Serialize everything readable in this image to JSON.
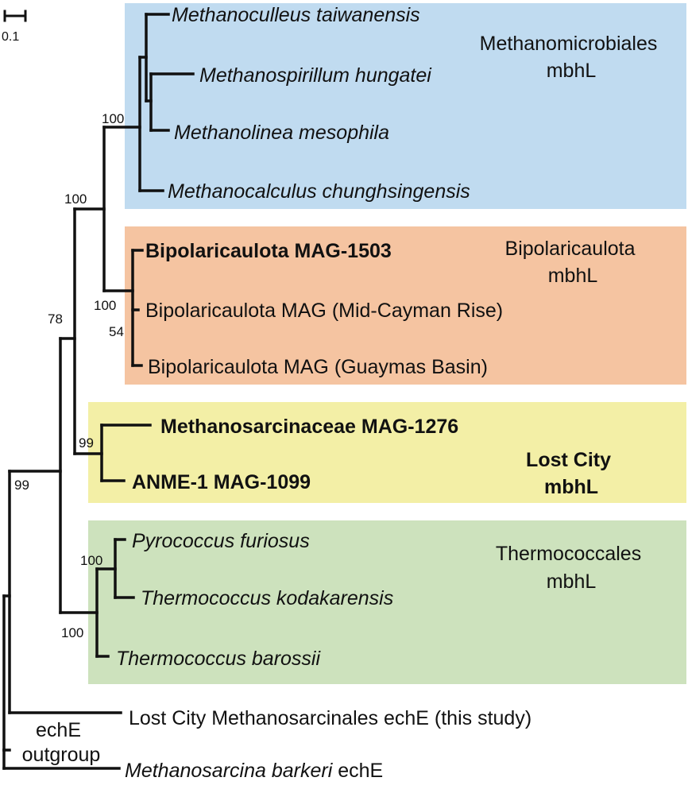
{
  "scale_bar": {
    "label": "0.1"
  },
  "clades": [
    {
      "id": "methanomicrobiales",
      "lines": [
        "Methanomicrobiales",
        "mbhL"
      ],
      "color": "#c0dbf0",
      "bold": false
    },
    {
      "id": "bipolaricaulota",
      "lines": [
        "Bipolaricaulota",
        "mbhL"
      ],
      "color": "#f5c4a1",
      "bold": false
    },
    {
      "id": "lost-city",
      "lines": [
        "Lost City",
        "mbhL"
      ],
      "color": "#f3efa6",
      "bold": true
    },
    {
      "id": "thermococcales",
      "lines": [
        "Thermococcales",
        "mbhL"
      ],
      "color": "#cde2bd",
      "bold": false
    }
  ],
  "leaves": [
    {
      "id": "m-taiwanensis",
      "segments": [
        {
          "text": "Methanoculleus taiwanensis",
          "style": "italic"
        }
      ]
    },
    {
      "id": "m-hungatei",
      "segments": [
        {
          "text": "Methanospirillum hungatei",
          "style": "italic"
        }
      ]
    },
    {
      "id": "m-mesophila",
      "segments": [
        {
          "text": "Methanolinea mesophila",
          "style": "italic"
        }
      ]
    },
    {
      "id": "m-chunghsingensis",
      "segments": [
        {
          "text": "Methanocalculus chunghsingensis",
          "style": "italic"
        }
      ]
    },
    {
      "id": "bipol-1503",
      "segments": [
        {
          "text": "Bipolaricaulota MAG-1503",
          "style": "bold"
        }
      ]
    },
    {
      "id": "bipol-cayman",
      "segments": [
        {
          "text": "Bipolaricaulota MAG (Mid-Cayman Rise)",
          "style": "normal"
        }
      ]
    },
    {
      "id": "bipol-guaymas",
      "segments": [
        {
          "text": "Bipolaricaulota MAG (Guaymas Basin)",
          "style": "normal"
        }
      ]
    },
    {
      "id": "msarc-1276",
      "segments": [
        {
          "text": "Methanosarcinaceae MAG-1276",
          "style": "bold"
        }
      ]
    },
    {
      "id": "anme-1099",
      "segments": [
        {
          "text": "ANME-1 MAG-1099",
          "style": "bold"
        }
      ]
    },
    {
      "id": "p-furiosus",
      "segments": [
        {
          "text": "Pyrococcus furiosus",
          "style": "italic"
        }
      ]
    },
    {
      "id": "t-kodakarensis",
      "segments": [
        {
          "text": "Thermococcus kodakarensis",
          "style": "italic"
        }
      ]
    },
    {
      "id": "t-barossii",
      "segments": [
        {
          "text": "Thermococcus barossii",
          "style": "italic"
        }
      ]
    },
    {
      "id": "lc-eche",
      "segments": [
        {
          "text": "Lost City Methanosarcinales echE (this study)",
          "style": "normal"
        }
      ]
    },
    {
      "id": "mb-eche",
      "segments": [
        {
          "text": "Methanosarcina barkeri",
          "style": "italic"
        },
        {
          "text": " echE",
          "style": "normal"
        }
      ]
    }
  ],
  "bootstrap": [
    {
      "id": "methanomicrobiales-node",
      "value": "100"
    },
    {
      "id": "methano-bipol-node",
      "value": "100"
    },
    {
      "id": "bipol-node",
      "value": "100"
    },
    {
      "id": "bipol-inner-node",
      "value": "54"
    },
    {
      "id": "mbhl-node",
      "value": "78"
    },
    {
      "id": "lost-city-node",
      "value": "99"
    },
    {
      "id": "pyro-thermo-node",
      "value": "100"
    },
    {
      "id": "thermococcales-node",
      "value": "100"
    },
    {
      "id": "ingroup-node",
      "value": "99"
    }
  ],
  "outgroup": {
    "lines": [
      "echE",
      "outgroup"
    ]
  }
}
